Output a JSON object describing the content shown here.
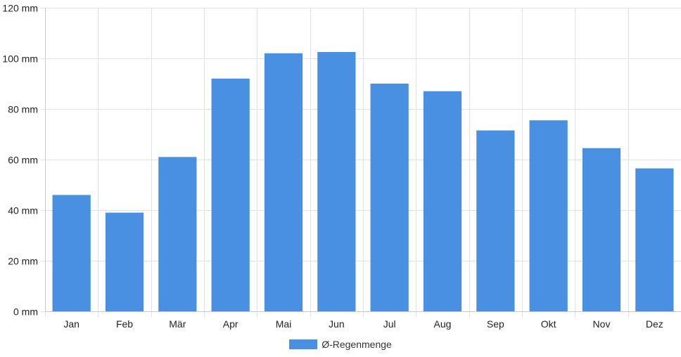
{
  "chart_data": {
    "type": "bar",
    "categories": [
      "Jan",
      "Feb",
      "Mär",
      "Apr",
      "Mai",
      "Jun",
      "Jul",
      "Aug",
      "Sep",
      "Okt",
      "Nov",
      "Dez"
    ],
    "series": [
      {
        "name": "Ø-Regenmenge",
        "values": [
          46,
          39,
          61,
          92,
          102,
          102.5,
          90,
          87,
          71.5,
          75.5,
          64.5,
          56.5
        ],
        "color": "#4a90e2"
      }
    ],
    "ylim": [
      0,
      120
    ],
    "yticks": [
      0,
      20,
      40,
      60,
      80,
      100,
      120
    ],
    "ytick_labels": [
      "0 mm",
      "20 mm",
      "40 mm",
      "60 mm",
      "80 mm",
      "100 mm",
      "120 mm"
    ],
    "grid": true,
    "legend_position": "bottom"
  }
}
